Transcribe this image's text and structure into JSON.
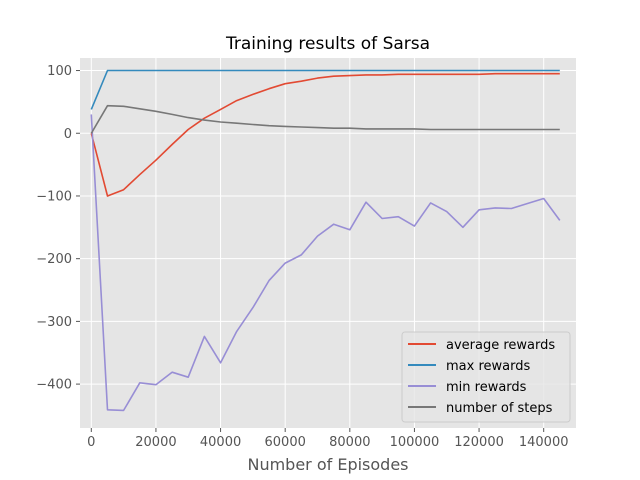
{
  "chart_data": {
    "type": "line",
    "title": "Training results of Sarsa",
    "xlabel": "Number of Episodes",
    "ylabel": "",
    "xlim": [
      -3500,
      150000
    ],
    "ylim": [
      -470,
      120
    ],
    "xticks": [
      0,
      20000,
      40000,
      60000,
      80000,
      100000,
      120000,
      140000
    ],
    "xtick_labels": [
      "0",
      "20000",
      "40000",
      "60000",
      "80000",
      "100000",
      "120000",
      "140000"
    ],
    "yticks": [
      100,
      0,
      -100,
      -200,
      -300,
      -400
    ],
    "ytick_labels": [
      "100",
      "0",
      "−100",
      "−200",
      "−300",
      "−400"
    ],
    "grid": true,
    "legend_position": "lower-right",
    "x": [
      0,
      5000,
      10000,
      15000,
      20000,
      25000,
      30000,
      35000,
      40000,
      45000,
      50000,
      55000,
      60000,
      65000,
      70000,
      75000,
      80000,
      85000,
      90000,
      95000,
      100000,
      105000,
      110000,
      115000,
      120000,
      125000,
      130000,
      135000,
      140000,
      145000
    ],
    "series": [
      {
        "name": "average rewards",
        "color": "#e24a33",
        "values": [
          0,
          -100,
          -90,
          -66,
          -43,
          -18,
          6,
          24,
          38,
          52,
          62,
          71,
          79,
          83,
          88,
          91,
          92,
          93,
          93,
          94,
          94,
          94,
          94,
          94,
          94,
          95,
          95,
          95,
          95,
          95
        ]
      },
      {
        "name": "max rewards",
        "color": "#348abd",
        "values": [
          38,
          100,
          100,
          100,
          100,
          100,
          100,
          100,
          100,
          100,
          100,
          100,
          100,
          100,
          100,
          100,
          100,
          100,
          100,
          100,
          100,
          100,
          100,
          100,
          100,
          100,
          100,
          100,
          100,
          100
        ]
      },
      {
        "name": "min rewards",
        "color": "#988ed5",
        "values": [
          30,
          -441,
          -442,
          -398,
          -401,
          -381,
          -389,
          -324,
          -366,
          -316,
          -278,
          -235,
          -207,
          -194,
          -164,
          -145,
          -154,
          -110,
          -136,
          -133,
          -148,
          -111,
          -125,
          -150,
          -122,
          -119,
          -120,
          -112,
          -104,
          -139
        ]
      },
      {
        "name": "number of steps",
        "color": "#777777",
        "values": [
          0,
          44,
          43,
          39,
          35,
          30,
          25,
          21,
          18,
          16,
          14,
          12,
          11,
          10,
          9,
          8,
          8,
          7,
          7,
          7,
          7,
          6,
          6,
          6,
          6,
          6,
          6,
          6,
          6,
          6
        ]
      }
    ]
  }
}
